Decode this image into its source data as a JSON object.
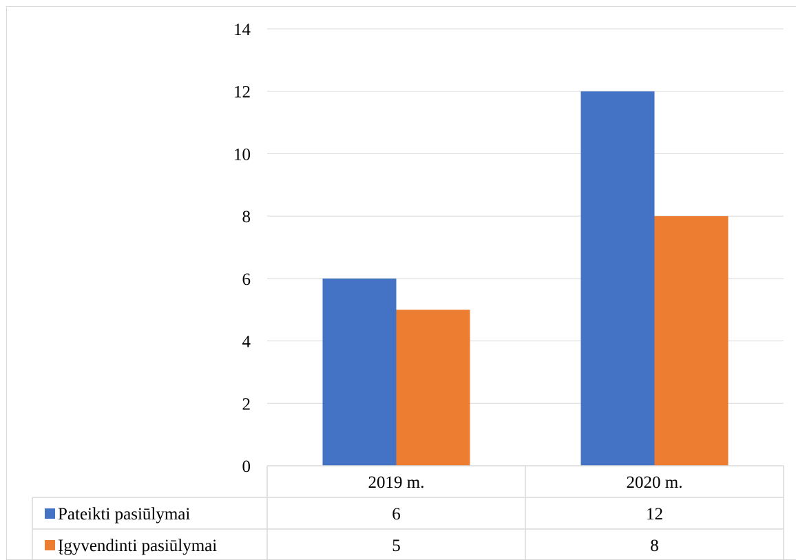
{
  "chart_data": {
    "type": "bar",
    "title": "",
    "xlabel": "",
    "ylabel": "",
    "categories": [
      "2019 m.",
      "2020 m."
    ],
    "series": [
      {
        "name": "Pateikti pasiūlymai",
        "values": [
          6,
          12
        ],
        "value_labels": [
          "6",
          "12"
        ],
        "color": "#4472C4"
      },
      {
        "name": "Įgyvendinti pasiūlymai",
        "values": [
          5,
          8
        ],
        "value_labels": [
          "5",
          "8"
        ],
        "color": "#ED7D31"
      }
    ],
    "ylim": [
      0,
      14
    ],
    "yticks": [
      "0",
      "2",
      "4",
      "6",
      "8",
      "10",
      "12",
      "14"
    ],
    "grid": true,
    "legend": "data-table-left",
    "data_table": true
  }
}
